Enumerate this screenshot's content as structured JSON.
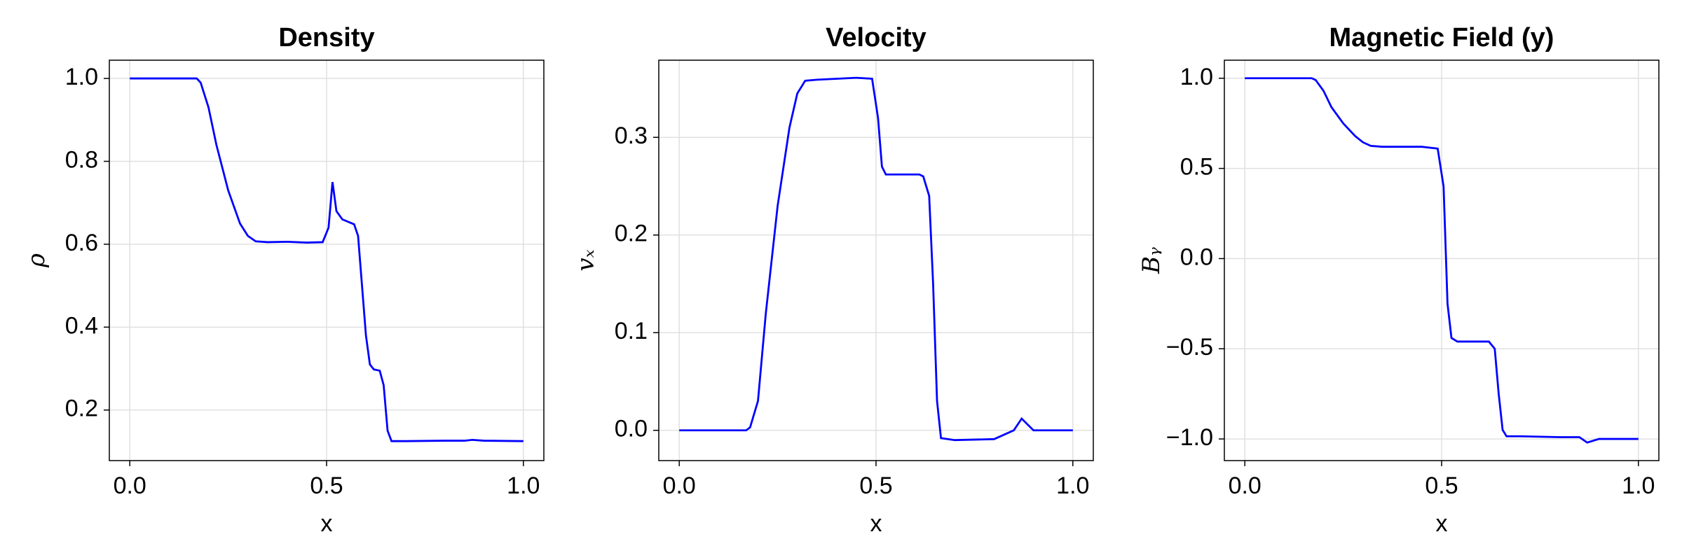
{
  "chart_data": [
    {
      "type": "line",
      "title": "Density",
      "x_label": "x",
      "y_label": "ρ",
      "x": [
        0,
        0.1,
        0.17,
        0.18,
        0.2,
        0.22,
        0.25,
        0.28,
        0.3,
        0.32,
        0.35,
        0.4,
        0.45,
        0.49,
        0.505,
        0.515,
        0.525,
        0.54,
        0.57,
        0.58,
        0.59,
        0.6,
        0.61,
        0.62,
        0.635,
        0.645,
        0.655,
        0.665,
        0.7,
        0.8,
        0.85,
        0.87,
        0.9,
        1.0
      ],
      "series": [
        {
          "color": "#0000ff",
          "values": [
            1,
            1,
            1,
            0.99,
            0.93,
            0.84,
            0.73,
            0.65,
            0.62,
            0.607,
            0.605,
            0.606,
            0.604,
            0.605,
            0.64,
            0.75,
            0.68,
            0.66,
            0.648,
            0.62,
            0.5,
            0.38,
            0.31,
            0.298,
            0.295,
            0.26,
            0.15,
            0.125,
            0.125,
            0.126,
            0.126,
            0.128,
            0.126,
            0.125
          ]
        }
      ],
      "xlim": [
        -0.052,
        1.052
      ],
      "ylim": [
        0.078,
        1.044
      ],
      "xticks": [
        {
          "value": 0,
          "label": "0.0"
        },
        0.5,
        {
          "value": 1,
          "label": "1.0"
        }
      ],
      "yticks": [
        0.2,
        0.4,
        0.6,
        0.8,
        {
          "value": 1,
          "label": "1.0"
        }
      ],
      "grid": true
    },
    {
      "type": "line",
      "title": "Velocity",
      "x_label": "x",
      "y_label": "vₓ",
      "x": [
        0,
        0.1,
        0.17,
        0.18,
        0.2,
        0.22,
        0.25,
        0.28,
        0.3,
        0.32,
        0.35,
        0.4,
        0.45,
        0.49,
        0.505,
        0.515,
        0.525,
        0.54,
        0.57,
        0.58,
        0.59,
        0.6,
        0.61,
        0.62,
        0.635,
        0.645,
        0.655,
        0.665,
        0.7,
        0.8,
        0.85,
        0.87,
        0.9,
        1.0
      ],
      "series": [
        {
          "color": "#0000ff",
          "values": [
            0,
            0,
            0,
            0.003,
            0.03,
            0.12,
            0.23,
            0.31,
            0.345,
            0.358,
            0.359,
            0.36,
            0.361,
            0.36,
            0.32,
            0.27,
            0.262,
            0.262,
            0.262,
            0.262,
            0.262,
            0.262,
            0.262,
            0.26,
            0.24,
            0.15,
            0.03,
            -0.008,
            -0.01,
            -0.009,
            0,
            0.012,
            0,
            0
          ]
        }
      ],
      "xlim": [
        -0.052,
        1.052
      ],
      "ylim": [
        -0.031,
        0.379
      ],
      "xticks": [
        {
          "value": 0,
          "label": "0.0"
        },
        0.5,
        {
          "value": 1,
          "label": "1.0"
        }
      ],
      "yticks": [
        {
          "value": 0,
          "label": "0.0"
        },
        0.1,
        0.2,
        0.3
      ],
      "grid": true
    },
    {
      "type": "line",
      "title": "Magnetic Field (y)",
      "x_label": "x",
      "y_label": "Bᵧ",
      "x": [
        0,
        0.1,
        0.17,
        0.18,
        0.2,
        0.22,
        0.25,
        0.28,
        0.3,
        0.32,
        0.35,
        0.4,
        0.45,
        0.49,
        0.505,
        0.515,
        0.525,
        0.54,
        0.57,
        0.58,
        0.59,
        0.6,
        0.61,
        0.62,
        0.635,
        0.645,
        0.655,
        0.665,
        0.7,
        0.8,
        0.85,
        0.87,
        0.9,
        1.0
      ],
      "series": [
        {
          "color": "#0000ff",
          "values": [
            1,
            1,
            1,
            0.99,
            0.93,
            0.84,
            0.75,
            0.68,
            0.645,
            0.625,
            0.62,
            0.62,
            0.62,
            0.61,
            0.4,
            -0.25,
            -0.44,
            -0.46,
            -0.46,
            -0.46,
            -0.46,
            -0.46,
            -0.46,
            -0.46,
            -0.5,
            -0.75,
            -0.95,
            -0.985,
            -0.985,
            -0.99,
            -0.99,
            -1.02,
            -1.0,
            -1.0
          ]
        }
      ],
      "xlim": [
        -0.052,
        1.052
      ],
      "ylim": [
        -1.12,
        1.1
      ],
      "xticks": [
        {
          "value": 0,
          "label": "0.0"
        },
        0.5,
        {
          "value": 1,
          "label": "1.0"
        }
      ],
      "yticks": [
        {
          "value": -1,
          "label": "−1.0"
        },
        {
          "value": -0.5,
          "label": "−0.5"
        },
        {
          "value": 0,
          "label": "0.0"
        },
        0.5,
        {
          "value": 1,
          "label": "1.0"
        }
      ],
      "grid": true
    }
  ]
}
